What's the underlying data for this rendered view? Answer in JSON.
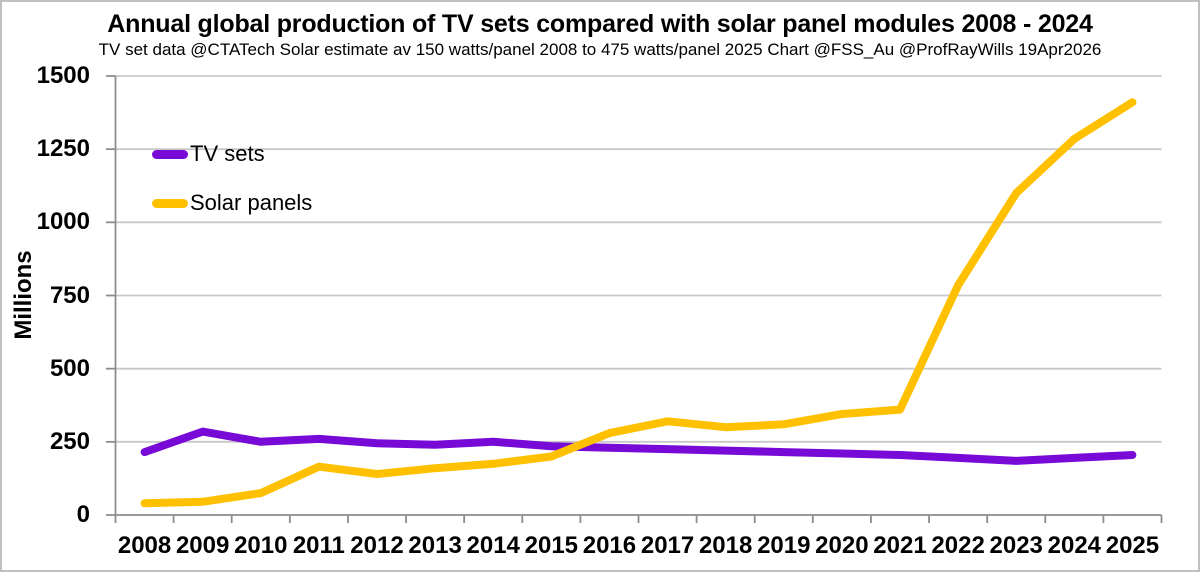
{
  "header": {
    "title": "Annual global production of TV sets compared with solar panel modules 2008 - 2024",
    "subtitle": "TV set data @CTATech Solar estimate av 150 watts/panel 2008 to 475 watts/panel 2025 Chart @FSS_Au @ProfRayWills 19Apr2026"
  },
  "colors": {
    "gridline": "#c8c8c8",
    "axis": "#8c8c8c",
    "background": "#ffffff",
    "border": "#bfbfbf",
    "text": "#000000"
  },
  "chart_data": {
    "type": "line",
    "title": "Annual global production of TV sets compared with solar panel modules 2008 - 2024",
    "subtitle": "TV set data @CTATech Solar estimate av 150 watts/panel 2008 to 475 watts/panel 2025 Chart @FSS_Au @ProfRayWills 19Apr2026",
    "categories": [
      "2008",
      "2009",
      "2010",
      "2011",
      "2012",
      "2013",
      "2014",
      "2015",
      "2016",
      "2017",
      "2018",
      "2019",
      "2020",
      "2021",
      "2022",
      "2023",
      "2024",
      "2025"
    ],
    "series": [
      {
        "name": "TV sets",
        "color": "#780ad7",
        "values": [
          215,
          285,
          250,
          260,
          245,
          240,
          250,
          235,
          230,
          225,
          220,
          215,
          210,
          205,
          195,
          185,
          195,
          205
        ]
      },
      {
        "name": "Solar panels",
        "color": "#ffc000",
        "values": [
          40,
          45,
          75,
          165,
          140,
          160,
          175,
          200,
          280,
          320,
          300,
          310,
          345,
          360,
          785,
          1100,
          1285,
          1410
        ]
      }
    ],
    "xlabel": "",
    "ylabel": "Millions",
    "ylim": [
      0,
      1500
    ],
    "yticks": [
      0,
      250,
      500,
      750,
      1000,
      1250,
      1500
    ],
    "grid": true,
    "legend_position": "top-left-inside"
  }
}
